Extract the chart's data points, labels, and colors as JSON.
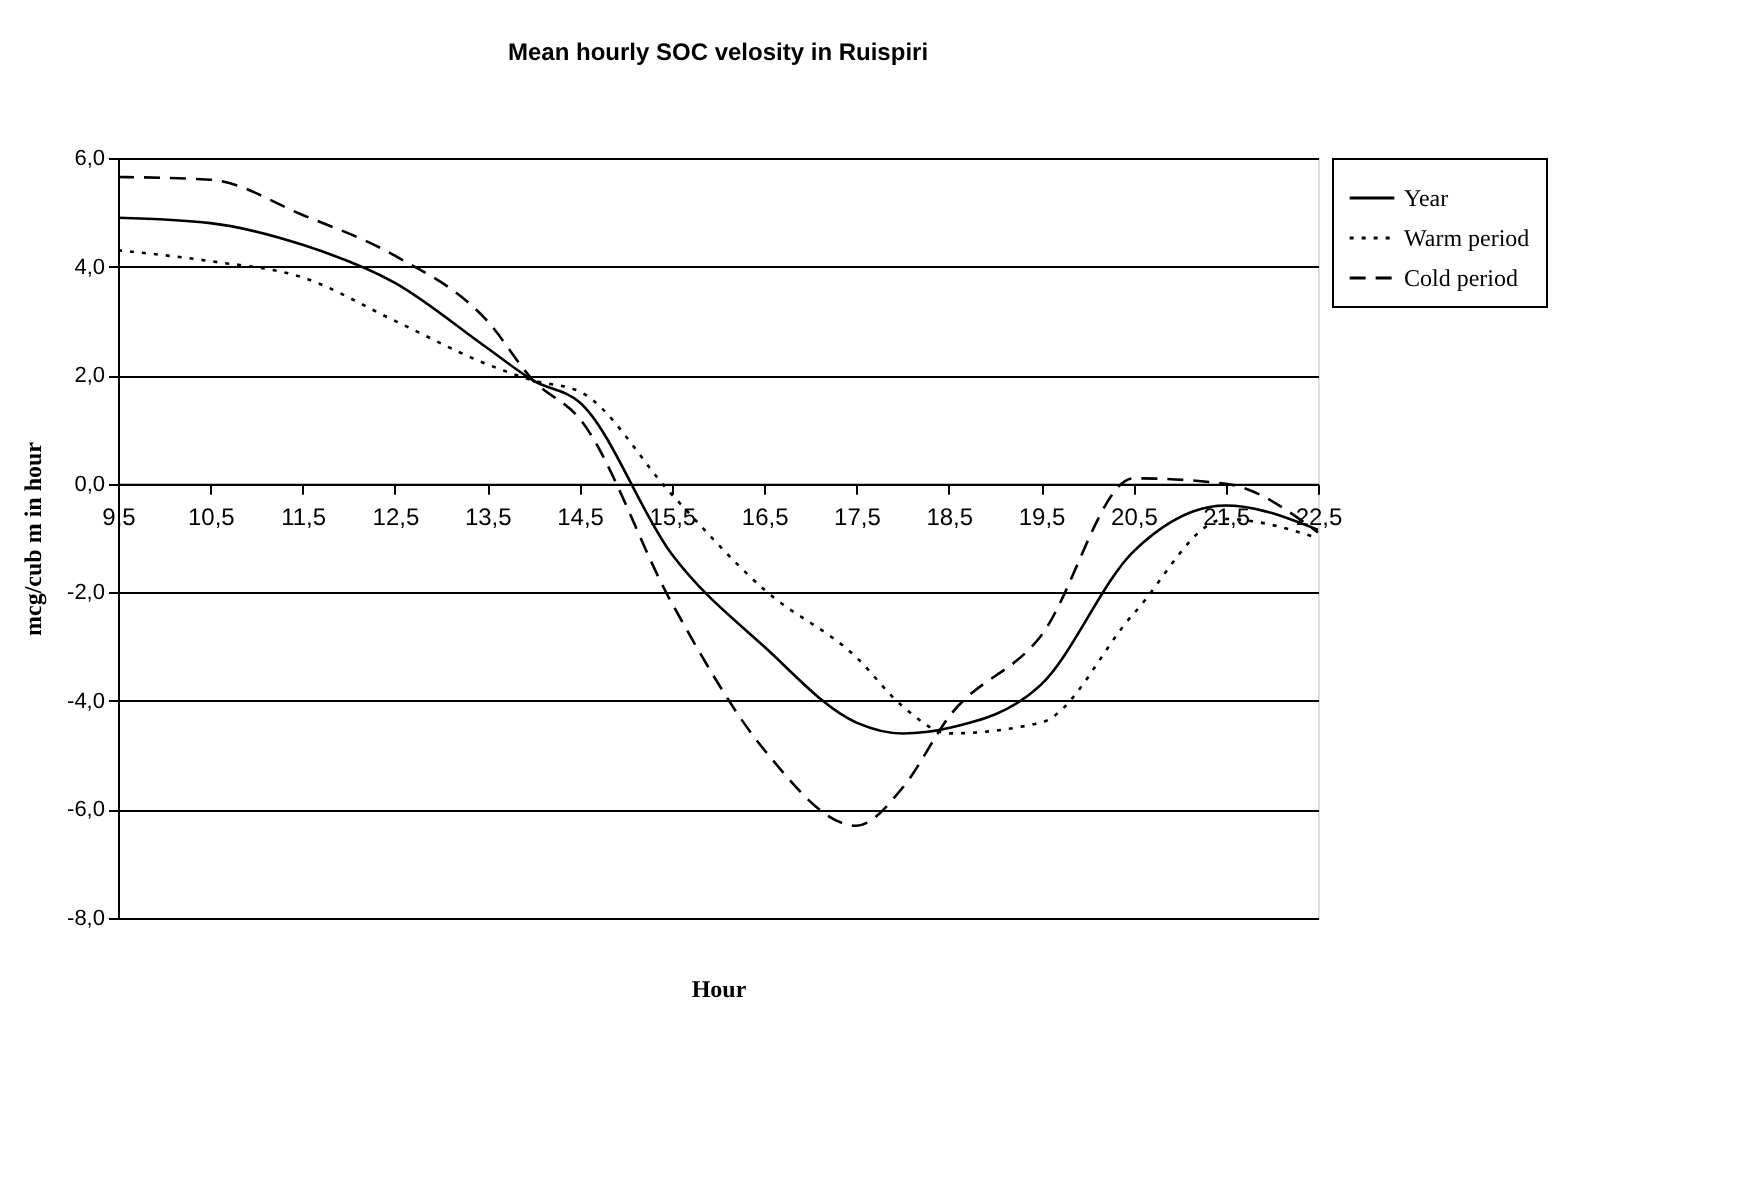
{
  "chart_data": {
    "type": "line",
    "title": "Mean hourly SOC velosity in Ruispiri",
    "xlabel": "Hour",
    "ylabel": "mcg/cub m in hour",
    "x": [
      9.5,
      10.5,
      11.5,
      12.5,
      13.5,
      14.0,
      14.5,
      15.5,
      16.5,
      17.5,
      18.0,
      18.5,
      19.5,
      20.5,
      21.5,
      22.5
    ],
    "series": [
      {
        "name": "Year",
        "color": "#000000",
        "line_style": "solid",
        "values": [
          4.9,
          4.8,
          4.4,
          3.7,
          2.5,
          1.9,
          1.5,
          -1.3,
          -3.0,
          -4.4,
          -4.6,
          -4.5,
          -3.7,
          -1.25,
          -0.4,
          -0.85
        ]
      },
      {
        "name": "Warm period",
        "color": "#000000",
        "line_style": "dotted",
        "values": [
          4.3,
          4.1,
          3.8,
          3.0,
          2.2,
          1.9,
          1.7,
          -0.2,
          -1.95,
          -3.2,
          -4.1,
          -4.6,
          -4.4,
          -2.4,
          -0.65,
          -1.0
        ]
      },
      {
        "name": "Cold period",
        "color": "#000000",
        "line_style": "dashed",
        "values": [
          5.65,
          5.6,
          4.95,
          4.2,
          3.0,
          1.9,
          1.2,
          -2.2,
          -4.9,
          -6.3,
          -5.6,
          -4.3,
          -2.8,
          0.1,
          0.0,
          -0.9
        ]
      }
    ],
    "xlim": [
      9.5,
      22.5
    ],
    "xticks": [
      {
        "value": 9.5,
        "label": "9,5"
      },
      {
        "value": 10.5,
        "label": "10,5"
      },
      {
        "value": 11.5,
        "label": "11,5"
      },
      {
        "value": 12.5,
        "label": "12,5"
      },
      {
        "value": 13.5,
        "label": "13,5"
      },
      {
        "value": 14.5,
        "label": "14,5"
      },
      {
        "value": 15.5,
        "label": "15,5"
      },
      {
        "value": 16.5,
        "label": "16,5"
      },
      {
        "value": 17.5,
        "label": "17,5"
      },
      {
        "value": 18.5,
        "label": "18,5"
      },
      {
        "value": 19.5,
        "label": "19,5"
      },
      {
        "value": 20.5,
        "label": "20,5"
      },
      {
        "value": 21.5,
        "label": "21,5"
      },
      {
        "value": 22.5,
        "label": "22,5"
      }
    ],
    "ylim": [
      -8,
      6
    ],
    "yticks": [
      {
        "value": -8,
        "label": "-8,0"
      },
      {
        "value": -6,
        "label": "-6,0"
      },
      {
        "value": -4,
        "label": "-4,0"
      },
      {
        "value": -2,
        "label": "-2,0"
      },
      {
        "value": 0,
        "label": "0,0"
      },
      {
        "value": 2,
        "label": "2,0"
      },
      {
        "value": 4,
        "label": "4,0"
      },
      {
        "value": 6,
        "label": "6,0"
      }
    ],
    "grid": "y",
    "legend": "right",
    "marker": "none"
  }
}
